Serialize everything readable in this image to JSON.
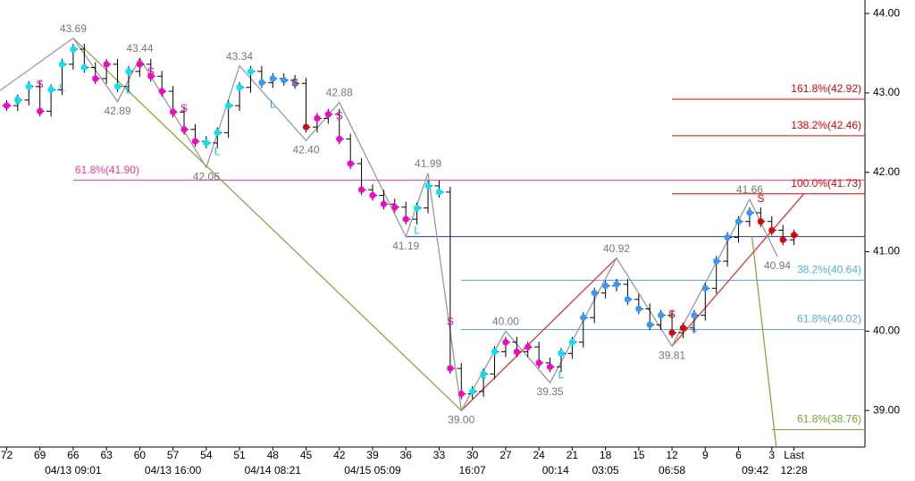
{
  "chart_data": {
    "type": "price",
    "xlim": [
      72.6,
      -5.4
    ],
    "ylim": [
      38.54,
      44.17
    ],
    "yticks": [
      {
        "value": 44,
        "label": "44.00"
      },
      {
        "value": 43,
        "label": "43.00"
      },
      {
        "value": 42,
        "label": "42.00"
      },
      {
        "value": 41,
        "label": "41.00"
      },
      {
        "value": 40,
        "label": "40.00"
      },
      {
        "value": 39,
        "label": "39.00"
      }
    ],
    "xticks": [
      72,
      69,
      66,
      63,
      60,
      57,
      54,
      51,
      48,
      45,
      42,
      39,
      36,
      33,
      30,
      27,
      24,
      21,
      18,
      15,
      12,
      9,
      6,
      3,
      {
        "value": 1,
        "label": "Last"
      }
    ],
    "time_labels": [
      {
        "x": 66,
        "label": "04/13 09:01"
      },
      {
        "x": 57,
        "label": "04/13 16:00"
      },
      {
        "x": 48,
        "label": "04/14 08:21"
      },
      {
        "x": 39,
        "label": "04/15 05:09"
      },
      {
        "x": 30,
        "label": "16:07"
      },
      {
        "x": 22.5,
        "label": "00:14"
      },
      {
        "x": 18,
        "label": "03:05"
      },
      {
        "x": 12,
        "label": "06:58"
      },
      {
        "x": 4.5,
        "label": "09:42"
      },
      {
        "x": 1,
        "label": "12:28"
      }
    ],
    "bars": {
      "x": [
        72,
        71,
        70,
        69,
        68,
        67,
        66,
        65,
        64,
        63,
        62,
        61,
        60,
        59,
        58,
        57,
        56,
        55,
        54,
        53,
        52,
        51,
        50,
        49,
        48,
        47,
        46,
        45,
        44,
        43,
        42,
        41,
        40,
        39,
        38,
        37,
        36,
        35,
        34,
        33,
        32,
        31,
        30,
        29,
        28,
        27,
        26,
        25,
        24,
        23,
        22,
        21,
        20,
        19,
        18,
        17,
        16,
        15,
        14,
        13,
        12,
        11,
        10,
        9,
        8,
        7,
        6,
        5,
        4,
        3,
        2,
        1
      ],
      "values": [
        42.84,
        42.91,
        43.08,
        42.77,
        43.04,
        43.36,
        43.55,
        43.32,
        43.18,
        43.36,
        43.08,
        43.27,
        43.36,
        43.21,
        43.02,
        42.76,
        42.54,
        42.39,
        42.37,
        42.5,
        42.84,
        43.07,
        43.27,
        43.13,
        43.18,
        43.16,
        43.12,
        42.57,
        42.68,
        42.73,
        42.42,
        42.11,
        41.78,
        41.71,
        41.6,
        41.56,
        41.41,
        41.55,
        41.83,
        41.75,
        39.53,
        39.21,
        39.24,
        39.46,
        39.74,
        39.86,
        39.74,
        39.8,
        39.6,
        39.55,
        39.72,
        39.86,
        40.17,
        40.48,
        40.57,
        40.59,
        40.4,
        40.28,
        40.08,
        40.2,
        39.98,
        40.04,
        40.2,
        40.54,
        40.88,
        41.18,
        41.38,
        41.49,
        41.38,
        41.27,
        41.15,
        41.21
      ],
      "colors": [
        "#ff00cc",
        "#00e5ff",
        "#00e5ff",
        "#ff00cc",
        "#00e5ff",
        "#00e5ff",
        "#00e5ff",
        "#00e5ff",
        "#ff00cc",
        "#ff00cc",
        "#00e5ff",
        "#00e5ff",
        "#ff00cc",
        "#ff00cc",
        "#ff00cc",
        "#ff00cc",
        "#ff00cc",
        "#ff00cc",
        "#00e5ff",
        "#00e5ff",
        "#00e5ff",
        "#00e5ff",
        "#00e5ff",
        "#3399ff",
        "#3399ff",
        "#3399ff",
        "#3399ff",
        "#e60000",
        "#ff00cc",
        "#ff00cc",
        "#ff00cc",
        "#ff00cc",
        "#ff00cc",
        "#ff00cc",
        "#ff00cc",
        "#ff00cc",
        "#ff00cc",
        "#00e5ff",
        "#00e5ff",
        "#00e5ff",
        "#ff00cc",
        "#ff00cc",
        "#00e5ff",
        "#00e5ff",
        "#00e5ff",
        "#ff00cc",
        "#ff00cc",
        "#ff00cc",
        "#ff00cc",
        "#ff00cc",
        "#00e5ff",
        "#00e5ff",
        "#3399ff",
        "#3399ff",
        "#3399ff",
        "#3399ff",
        "#3399ff",
        "#3399ff",
        "#3399ff",
        "#3399ff",
        "#e60000",
        "#e60000",
        "#3399ff",
        "#3399ff",
        "#3399ff",
        "#3399ff",
        "#3399ff",
        "#3399ff",
        "#e60000",
        "#e60000",
        "#e60000",
        "#e60000"
      ]
    },
    "zigzag": {
      "color": "#999999",
      "x": [
        72.6,
        66,
        62,
        60,
        54,
        51,
        45,
        42,
        36,
        34,
        31,
        27,
        23,
        17,
        12,
        5,
        2.5
      ],
      "values": [
        43.03,
        43.69,
        42.89,
        43.44,
        42.06,
        43.34,
        42.4,
        42.88,
        41.19,
        41.99,
        39.0,
        40.0,
        39.35,
        40.92,
        39.81,
        41.66,
        40.94
      ]
    },
    "pivot_labels": {
      "x": [
        66,
        62,
        60,
        54,
        51,
        45,
        42,
        36,
        34,
        31,
        27,
        23,
        17,
        12,
        5,
        2.5
      ],
      "values": [
        43.69,
        42.89,
        43.44,
        42.06,
        43.34,
        42.4,
        42.88,
        41.19,
        41.99,
        39.0,
        40.0,
        39.35,
        40.92,
        39.81,
        41.66,
        40.94
      ],
      "value_labels": [
        "43.69",
        "42.89",
        "43.44",
        "42.06",
        "43.34",
        "42.40",
        "42.88",
        "41.19",
        "41.99",
        "39.00",
        "40.00",
        "39.35",
        "40.92",
        "39.81",
        "41.66",
        "40.94"
      ],
      "above": [
        true,
        false,
        true,
        false,
        true,
        false,
        true,
        false,
        true,
        false,
        true,
        false,
        true,
        false,
        true,
        false
      ]
    },
    "trend_lines": [
      {
        "color": "#77a832",
        "x": [
          66,
          31
        ],
        "values": [
          43.69,
          39.0
        ]
      },
      {
        "color": "#77a832",
        "x": [
          4.8,
          2.6
        ],
        "values": [
          41.2,
          38.54
        ]
      },
      {
        "color": "#ee2222",
        "x": [
          31,
          17
        ],
        "values": [
          39.0,
          40.92
        ]
      },
      {
        "color": "#ee2222",
        "x": [
          12,
          0.1
        ],
        "values": [
          39.81,
          41.73
        ]
      }
    ],
    "levels": [
      {
        "value": 42.92,
        "label": "161.8%(42.92)",
        "color": "#e60000",
        "x_start": 12
      },
      {
        "value": 42.46,
        "label": "138.2%(42.46)",
        "color": "#e60000",
        "x_start": 12
      },
      {
        "value": 41.9,
        "label": "61.8%(41.90)",
        "color": "#ff3399",
        "x_start": 66
      },
      {
        "value": 41.73,
        "label": "100.0%(41.73)",
        "color": "#e60000",
        "x_start": 12
      },
      {
        "value": 41.19,
        "color": "#333399",
        "x_start": 36
      },
      {
        "value": 40.64,
        "label": "38.2%(40.64)",
        "color": "#55aaee",
        "x_start": 31
      },
      {
        "value": 40.02,
        "label": "61.8%(40.02)",
        "color": "#55aaee",
        "x_start": 31
      },
      {
        "value": 38.76,
        "label": "61.8%(38.76)",
        "color": "#77a832",
        "x_start": 3
      }
    ],
    "signals": [
      {
        "text": "L",
        "x": 71,
        "y": 42.9,
        "color": "#00ccee"
      },
      {
        "text": "S",
        "x": 69,
        "y": 43.1,
        "color": "#ee00aa"
      },
      {
        "text": "L",
        "x": 67,
        "y": 43.06,
        "color": "#00ccee"
      },
      {
        "text": "L",
        "x": 61,
        "y": 43.03,
        "color": "#00ccee"
      },
      {
        "text": "S",
        "x": 59,
        "y": 43.26,
        "color": "#ee00aa"
      },
      {
        "text": "S",
        "x": 56,
        "y": 42.8,
        "color": "#ee00aa"
      },
      {
        "text": "L",
        "x": 53,
        "y": 42.25,
        "color": "#00ccee"
      },
      {
        "text": "L",
        "x": 48,
        "y": 42.85,
        "color": "#3399ff"
      },
      {
        "text": "S",
        "x": 46,
        "y": 43.12,
        "color": "#e60000"
      },
      {
        "text": "S",
        "x": 42,
        "y": 42.7,
        "color": "#ee00aa"
      },
      {
        "text": "L",
        "x": 35,
        "y": 41.26,
        "color": "#00ccee"
      },
      {
        "text": "S",
        "x": 32,
        "y": 40.11,
        "color": "#ee00aa"
      },
      {
        "text": "L",
        "x": 29,
        "y": 39.44,
        "color": "#00ccee"
      },
      {
        "text": "L",
        "x": 22,
        "y": 39.44,
        "color": "#00ccee"
      },
      {
        "text": "S",
        "x": 12,
        "y": 40.2,
        "color": "#e60000"
      },
      {
        "text": "L",
        "x": 10,
        "y": 40.03,
        "color": "#3399ff"
      },
      {
        "text": "S",
        "x": 4,
        "y": 41.66,
        "color": "#e60000"
      }
    ]
  }
}
